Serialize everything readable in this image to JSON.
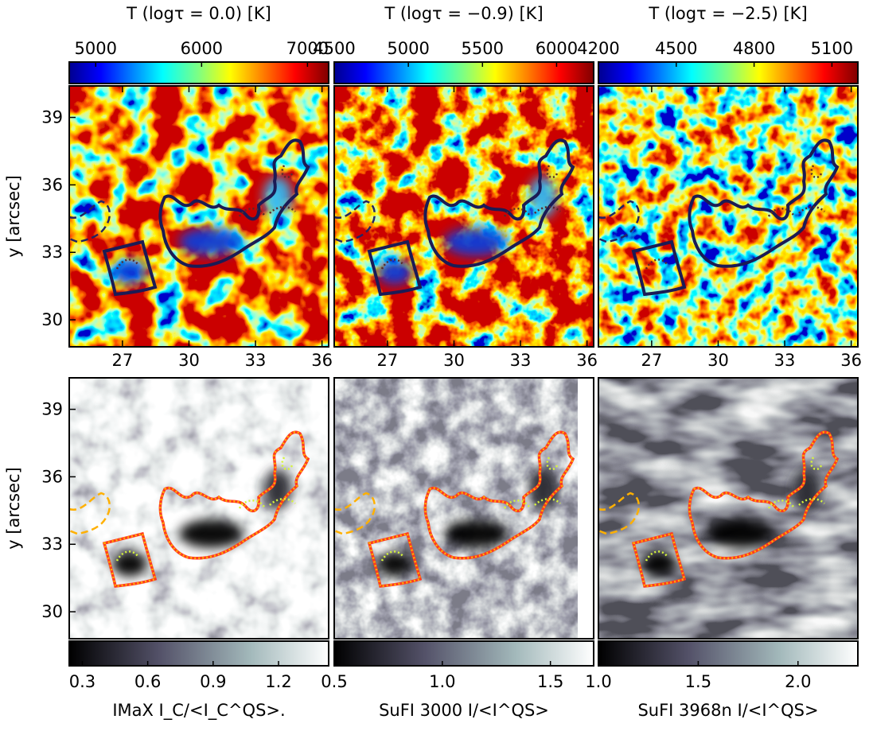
{
  "chart_data": [
    {
      "type": "image",
      "title": "T (logτ = 0.0) [K]",
      "colormap": "jet",
      "colorbar_position": "top",
      "colorbar": {
        "clim": [
          4750,
          7200
        ],
        "ticks": [
          5000,
          6000,
          7000
        ]
      },
      "xlim": [
        24.6,
        36.3
      ],
      "xticks": [
        27,
        30,
        33,
        36
      ],
      "ylim": [
        28.8,
        40.4
      ],
      "yticks": [
        30,
        33,
        36,
        39
      ],
      "ylabel": "y [arcsec]"
    },
    {
      "type": "image",
      "title": "T (logτ = −0.9) [K]",
      "colormap": "jet",
      "colorbar_position": "top",
      "colorbar": {
        "clim": [
          4500,
          6250
        ],
        "ticks": [
          4500,
          5000,
          5500,
          6000
        ]
      },
      "xlim": [
        24.6,
        36.3
      ],
      "xticks": [
        27,
        30,
        33,
        36
      ],
      "ylim": [
        28.8,
        40.4
      ]
    },
    {
      "type": "image",
      "title": "T (logτ = −2.5) [K]",
      "colormap": "jet",
      "colorbar_position": "top",
      "colorbar": {
        "clim": [
          4200,
          5200
        ],
        "ticks": [
          4200,
          4500,
          4800,
          5100
        ]
      },
      "xlim": [
        24.6,
        36.3
      ],
      "xticks": [
        27,
        30,
        33,
        36
      ],
      "ylim": [
        28.8,
        40.4
      ]
    },
    {
      "type": "image",
      "title": "IMaX I_C/<I_C^QS>.",
      "colormap": "bone",
      "colorbar_position": "bottom",
      "colorbar": {
        "clim": [
          0.24,
          1.43
        ],
        "ticks": [
          0.3,
          0.6,
          0.9,
          1.2
        ]
      },
      "xlim": [
        24.6,
        36.3
      ],
      "ylim": [
        28.8,
        40.4
      ],
      "yticks": [
        30,
        33,
        36,
        39
      ],
      "ylabel": "y [arcsec]"
    },
    {
      "type": "image",
      "title": "SuFI 3000 I/<I^QS>",
      "colormap": "bone",
      "colorbar_position": "bottom",
      "colorbar": {
        "clim": [
          0.5,
          1.7
        ],
        "ticks": [
          0.5,
          {
            "value": 1,
            "label": "1.0"
          },
          1.5
        ]
      },
      "xlim": [
        24.6,
        36.3
      ],
      "ylim": [
        28.8,
        40.4
      ]
    },
    {
      "type": "image",
      "title": "SuFI 3968n I/<I^QS>",
      "colormap": "bone",
      "colorbar_position": "bottom",
      "colorbar": {
        "clim": [
          1.0,
          2.3
        ],
        "ticks": [
          {
            "value": 1,
            "label": "1.0"
          },
          1.5,
          {
            "value": 2,
            "label": "2.0"
          }
        ]
      },
      "xlim": [
        24.6,
        36.3
      ],
      "ylim": [
        28.8,
        40.4
      ]
    }
  ]
}
